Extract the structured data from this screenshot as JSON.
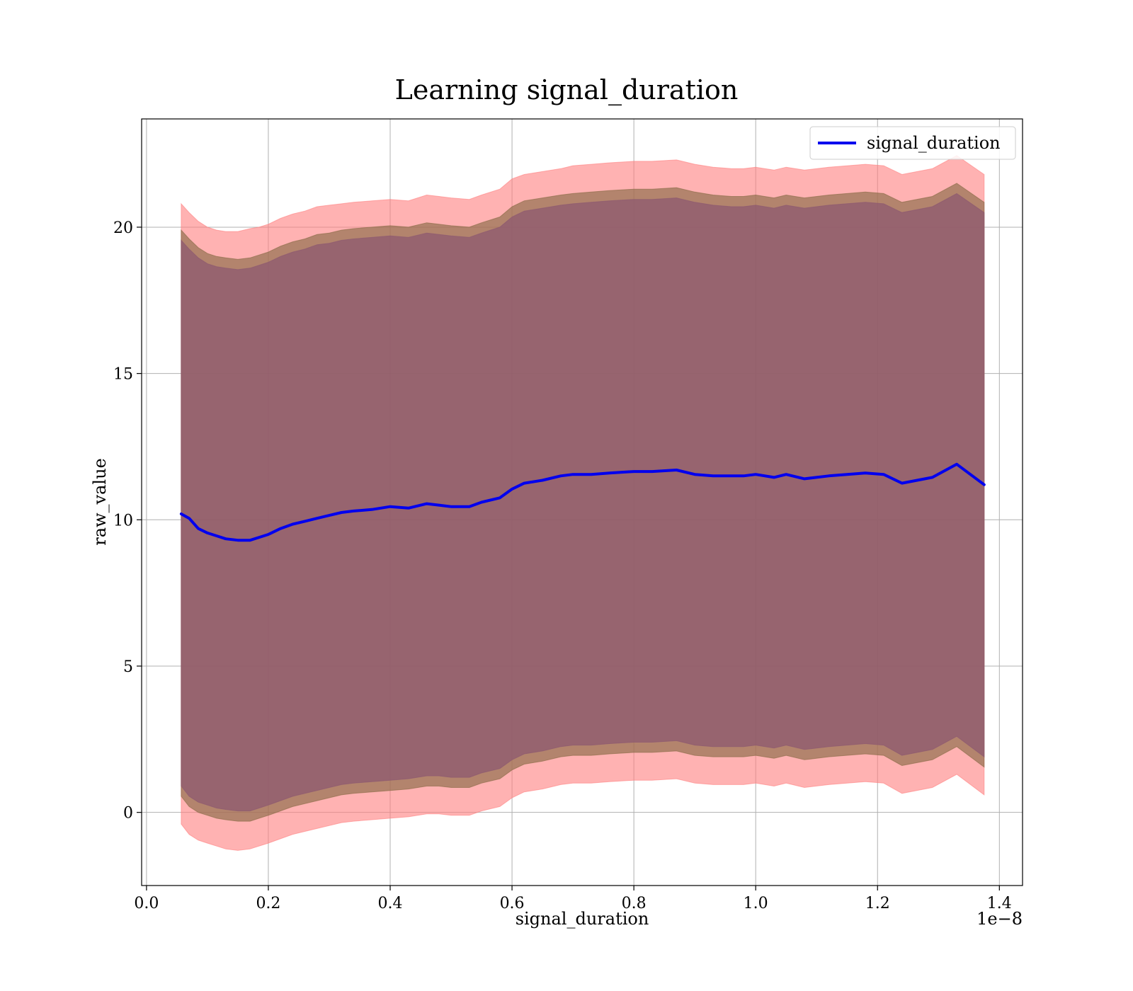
{
  "chart_data": {
    "type": "line",
    "title": "Learning signal_duration",
    "xlabel": "signal_duration",
    "ylabel": "raw_value",
    "x_offset_label": "1e−8",
    "xlim": [
      -0.008,
      1.438
    ],
    "ylim": [
      -2.5,
      23.7
    ],
    "x_ticks": [
      0.0,
      0.2,
      0.4,
      0.6,
      0.8,
      1.0,
      1.2,
      1.4
    ],
    "x_tick_labels": [
      "0.0",
      "0.2",
      "0.4",
      "0.6",
      "0.8",
      "1.0",
      "1.2",
      "1.4"
    ],
    "y_ticks": [
      0,
      5,
      10,
      15,
      20
    ],
    "y_tick_labels": [
      "0",
      "5",
      "10",
      "15",
      "20"
    ],
    "grid": true,
    "legend": {
      "position": "top-right"
    },
    "series": [
      {
        "name": "signal_duration",
        "color": "#0000ee",
        "x": [
          0.057,
          0.07,
          0.085,
          0.1,
          0.115,
          0.13,
          0.15,
          0.17,
          0.185,
          0.2,
          0.22,
          0.24,
          0.26,
          0.28,
          0.3,
          0.32,
          0.34,
          0.37,
          0.4,
          0.43,
          0.46,
          0.48,
          0.5,
          0.53,
          0.55,
          0.58,
          0.6,
          0.62,
          0.65,
          0.68,
          0.7,
          0.73,
          0.76,
          0.8,
          0.83,
          0.87,
          0.9,
          0.93,
          0.96,
          0.98,
          1.0,
          1.03,
          1.05,
          1.08,
          1.12,
          1.18,
          1.21,
          1.24,
          1.29,
          1.33,
          1.375
        ],
        "y": [
          10.2,
          10.05,
          9.7,
          9.55,
          9.45,
          9.35,
          9.3,
          9.3,
          9.4,
          9.5,
          9.7,
          9.85,
          9.95,
          10.05,
          10.15,
          10.25,
          10.3,
          10.35,
          10.45,
          10.4,
          10.55,
          10.5,
          10.45,
          10.45,
          10.6,
          10.75,
          11.05,
          11.25,
          11.35,
          11.5,
          11.55,
          11.55,
          11.6,
          11.65,
          11.65,
          11.7,
          11.55,
          11.5,
          11.5,
          11.5,
          11.55,
          11.45,
          11.55,
          11.4,
          11.5,
          11.6,
          11.55,
          11.25,
          11.45,
          11.9,
          11.2
        ]
      }
    ],
    "bands": [
      {
        "color": "#ff7f7f",
        "opacity": 0.6,
        "upper": [
          20.8,
          20.5,
          20.2,
          20.0,
          19.9,
          19.85,
          19.85,
          19.95,
          20.0,
          20.1,
          20.3,
          20.45,
          20.55,
          20.7,
          20.75,
          20.8,
          20.85,
          20.9,
          20.95,
          20.9,
          21.1,
          21.05,
          21.0,
          20.95,
          21.1,
          21.3,
          21.65,
          21.8,
          21.9,
          22.0,
          22.1,
          22.15,
          22.2,
          22.25,
          22.25,
          22.3,
          22.15,
          22.05,
          22.0,
          22.0,
          22.05,
          21.95,
          22.05,
          21.95,
          22.05,
          22.15,
          22.1,
          21.8,
          22.0,
          22.45,
          21.8
        ],
        "lower": [
          -0.4,
          -0.75,
          -0.95,
          -1.05,
          -1.15,
          -1.25,
          -1.3,
          -1.25,
          -1.15,
          -1.05,
          -0.9,
          -0.75,
          -0.65,
          -0.55,
          -0.45,
          -0.35,
          -0.3,
          -0.25,
          -0.2,
          -0.15,
          -0.05,
          -0.05,
          -0.1,
          -0.1,
          0.05,
          0.2,
          0.5,
          0.7,
          0.8,
          0.95,
          1.0,
          1.0,
          1.05,
          1.1,
          1.1,
          1.15,
          1.0,
          0.95,
          0.95,
          0.95,
          1.0,
          0.9,
          1.0,
          0.85,
          0.95,
          1.05,
          1.0,
          0.65,
          0.85,
          1.3,
          0.6
        ]
      },
      {
        "color": "#8b6b48",
        "opacity": 0.65,
        "upper": [
          19.9,
          19.6,
          19.3,
          19.1,
          19.0,
          18.95,
          18.9,
          18.95,
          19.05,
          19.15,
          19.35,
          19.5,
          19.6,
          19.75,
          19.8,
          19.9,
          19.95,
          20.0,
          20.05,
          20.0,
          20.15,
          20.1,
          20.05,
          20.0,
          20.15,
          20.35,
          20.7,
          20.9,
          21.0,
          21.1,
          21.15,
          21.2,
          21.25,
          21.3,
          21.3,
          21.35,
          21.2,
          21.1,
          21.05,
          21.05,
          21.1,
          21.0,
          21.1,
          21.0,
          21.1,
          21.2,
          21.15,
          20.85,
          21.05,
          21.5,
          20.85
        ],
        "lower": [
          0.55,
          0.2,
          0.0,
          -0.1,
          -0.2,
          -0.25,
          -0.3,
          -0.3,
          -0.2,
          -0.1,
          0.05,
          0.2,
          0.3,
          0.4,
          0.5,
          0.6,
          0.65,
          0.7,
          0.75,
          0.8,
          0.9,
          0.9,
          0.85,
          0.85,
          1.0,
          1.15,
          1.45,
          1.65,
          1.75,
          1.9,
          1.95,
          1.95,
          2.0,
          2.05,
          2.05,
          2.1,
          1.95,
          1.9,
          1.9,
          1.9,
          1.95,
          1.85,
          1.95,
          1.8,
          1.9,
          2.0,
          1.95,
          1.6,
          1.8,
          2.25,
          1.55
        ]
      },
      {
        "color": "#8e5a70",
        "opacity": 0.75,
        "upper": [
          19.55,
          19.25,
          18.95,
          18.75,
          18.65,
          18.6,
          18.55,
          18.6,
          18.7,
          18.8,
          19.0,
          19.15,
          19.25,
          19.4,
          19.45,
          19.55,
          19.6,
          19.65,
          19.7,
          19.65,
          19.8,
          19.75,
          19.7,
          19.65,
          19.8,
          20.0,
          20.35,
          20.55,
          20.65,
          20.75,
          20.8,
          20.85,
          20.9,
          20.95,
          20.95,
          21.0,
          20.85,
          20.75,
          20.7,
          20.7,
          20.75,
          20.65,
          20.75,
          20.65,
          20.75,
          20.85,
          20.8,
          20.5,
          20.7,
          21.15,
          20.5
        ],
        "lower": [
          0.9,
          0.55,
          0.35,
          0.25,
          0.15,
          0.1,
          0.05,
          0.05,
          0.15,
          0.25,
          0.4,
          0.55,
          0.65,
          0.75,
          0.85,
          0.95,
          1.0,
          1.05,
          1.1,
          1.15,
          1.25,
          1.25,
          1.2,
          1.2,
          1.35,
          1.5,
          1.8,
          2.0,
          2.1,
          2.25,
          2.3,
          2.3,
          2.35,
          2.4,
          2.4,
          2.45,
          2.3,
          2.25,
          2.25,
          2.25,
          2.3,
          2.2,
          2.3,
          2.15,
          2.25,
          2.35,
          2.3,
          1.95,
          2.15,
          2.6,
          1.9
        ]
      }
    ]
  }
}
